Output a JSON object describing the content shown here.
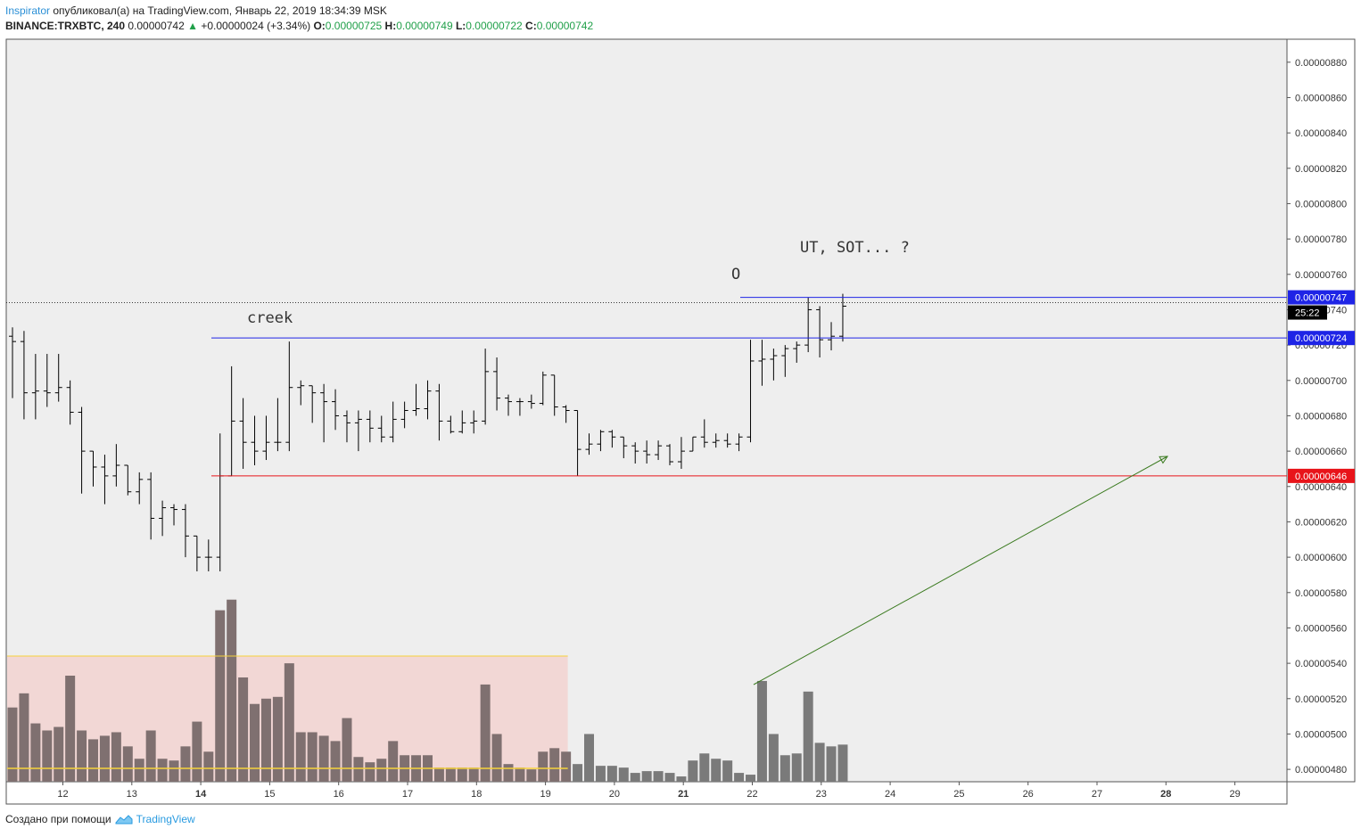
{
  "header": {
    "author": "Inspirator",
    "published_text": "опубликовал(а) на TradingView.com, Январь 22, 2019 18:34:39 MSK",
    "symbol": "BINANCE:TRXBTC, 240",
    "last": "0.00000742",
    "change_arrow": "▲",
    "change": "+0.00000024 (+3.34%)",
    "o_label": "O:",
    "o_value": "0.00000725",
    "h_label": "H:",
    "h_value": "0.00000749",
    "l_label": "L:",
    "l_value": "0.00000722",
    "c_label": "C:",
    "c_value": "0.00000742"
  },
  "footer": {
    "text": "Создано при помощи",
    "brand": "TradingView",
    "logo_icon": "tradingview-logo-icon"
  },
  "chart_data": {
    "type": "bar",
    "subtype": "ohlc",
    "interval": "240",
    "y_range": [
      4.73e-06,
      8.93e-06
    ],
    "y_ticks": [
      "0.00000880",
      "0.00000860",
      "0.00000840",
      "0.00000820",
      "0.00000800",
      "0.00000780",
      "0.00000760",
      "0.00000740",
      "0.00000720",
      "0.00000700",
      "0.00000680",
      "0.00000660",
      "0.00000640",
      "0.00000620",
      "0.00000600",
      "0.00000580",
      "0.00000560",
      "0.00000540",
      "0.00000520",
      "0.00000500",
      "0.00000480"
    ],
    "x_ticks": [
      {
        "label": "12",
        "day": 12,
        "bold": false
      },
      {
        "label": "13",
        "day": 13,
        "bold": false
      },
      {
        "label": "14",
        "day": 14,
        "bold": true
      },
      {
        "label": "15",
        "day": 15,
        "bold": false
      },
      {
        "label": "16",
        "day": 16,
        "bold": false
      },
      {
        "label": "17",
        "day": 17,
        "bold": false
      },
      {
        "label": "18",
        "day": 18,
        "bold": false
      },
      {
        "label": "19",
        "day": 19,
        "bold": false
      },
      {
        "label": "20",
        "day": 20,
        "bold": false
      },
      {
        "label": "21",
        "day": 21,
        "bold": true
      },
      {
        "label": "22",
        "day": 22,
        "bold": false
      },
      {
        "label": "23",
        "day": 23,
        "bold": false
      },
      {
        "label": "24",
        "day": 24,
        "bold": false
      },
      {
        "label": "25",
        "day": 25,
        "bold": false
      },
      {
        "label": "26",
        "day": 26,
        "bold": false
      },
      {
        "label": "27",
        "day": 27,
        "bold": false
      },
      {
        "label": "28",
        "day": 28,
        "bold": true
      },
      {
        "label": "29",
        "day": 29,
        "bold": false
      }
    ],
    "price_labels": [
      {
        "value": "0.00000747",
        "color": "#1e24e6"
      },
      {
        "value": "0.00000724",
        "color": "#1e24e6"
      },
      {
        "value": "0.00000646",
        "color": "#e8141a"
      }
    ],
    "countdown": "25:22",
    "last_price": 7.42e-06,
    "annotations": [
      "creek",
      "O",
      "UT, SOT... ?"
    ],
    "candles": [
      [
        7.25e-06,
        7.3e-06,
        6.9e-06,
        7.22e-06
      ],
      [
        7.22e-06,
        7.28e-06,
        6.78e-06,
        6.93e-06
      ],
      [
        6.93e-06,
        7.15e-06,
        6.78e-06,
        6.94e-06
      ],
      [
        6.94e-06,
        7.15e-06,
        6.85e-06,
        6.93e-06
      ],
      [
        6.93e-06,
        7.15e-06,
        6.88e-06,
        6.96e-06
      ],
      [
        6.96e-06,
        7e-06,
        6.75e-06,
        6.82e-06
      ],
      [
        6.82e-06,
        6.85e-06,
        6.36e-06,
        6.6e-06
      ],
      [
        6.6e-06,
        6.6e-06,
        6.4e-06,
        6.51e-06
      ],
      [
        6.51e-06,
        6.58e-06,
        6.3e-06,
        6.46e-06
      ],
      [
        6.46e-06,
        6.64e-06,
        6.4e-06,
        6.52e-06
      ],
      [
        6.52e-06,
        6.52e-06,
        6.35e-06,
        6.37e-06
      ],
      [
        6.37e-06,
        6.48e-06,
        6.3e-06,
        6.44e-06
      ],
      [
        6.44e-06,
        6.48e-06,
        6.1e-06,
        6.22e-06
      ],
      [
        6.22e-06,
        6.32e-06,
        6.12e-06,
        6.28e-06
      ],
      [
        6.28e-06,
        6.3e-06,
        6.18e-06,
        6.27e-06
      ],
      [
        6.27e-06,
        6.3e-06,
        6e-06,
        6.12e-06
      ],
      [
        6.12e-06,
        6.12e-06,
        5.92e-06,
        6e-06
      ],
      [
        6e-06,
        6.1e-06,
        5.92e-06,
        6e-06
      ],
      [
        6e-06,
        6.7e-06,
        5.92e-06,
        6.46e-06
      ],
      [
        6.46e-06,
        7.08e-06,
        6.46e-06,
        6.77e-06
      ],
      [
        6.77e-06,
        6.9e-06,
        6.5e-06,
        6.65e-06
      ],
      [
        6.65e-06,
        6.8e-06,
        6.52e-06,
        6.6e-06
      ],
      [
        6.6e-06,
        6.8e-06,
        6.55e-06,
        6.65e-06
      ],
      [
        6.65e-06,
        6.9e-06,
        6.6e-06,
        6.65e-06
      ],
      [
        6.65e-06,
        7.22e-06,
        6.6e-06,
        6.96e-06
      ],
      [
        6.96e-06,
        7e-06,
        6.86e-06,
        6.97e-06
      ],
      [
        6.97e-06,
        6.97e-06,
        6.76e-06,
        6.93e-06
      ],
      [
        6.93e-06,
        6.98e-06,
        6.65e-06,
        6.88e-06
      ],
      [
        6.88e-06,
        6.95e-06,
        6.72e-06,
        6.8e-06
      ],
      [
        6.8e-06,
        6.83e-06,
        6.65e-06,
        6.76e-06
      ],
      [
        6.76e-06,
        6.83e-06,
        6.6e-06,
        6.78e-06
      ],
      [
        6.78e-06,
        6.83e-06,
        6.65e-06,
        6.73e-06
      ],
      [
        6.73e-06,
        6.8e-06,
        6.65e-06,
        6.68e-06
      ],
      [
        6.68e-06,
        6.88e-06,
        6.65e-06,
        6.78e-06
      ],
      [
        6.78e-06,
        6.88e-06,
        6.73e-06,
        6.83e-06
      ],
      [
        6.83e-06,
        6.98e-06,
        6.8e-06,
        6.84e-06
      ],
      [
        6.84e-06,
        7e-06,
        6.78e-06,
        6.94e-06
      ],
      [
        6.94e-06,
        6.98e-06,
        6.66e-06,
        6.77e-06
      ],
      [
        6.77e-06,
        6.8e-06,
        6.7e-06,
        6.71e-06
      ],
      [
        6.71e-06,
        6.83e-06,
        6.7e-06,
        6.76e-06
      ],
      [
        6.76e-06,
        6.83e-06,
        6.7e-06,
        6.77e-06
      ],
      [
        6.77e-06,
        7.18e-06,
        6.75e-06,
        7.05e-06
      ],
      [
        7.05e-06,
        7.13e-06,
        6.83e-06,
        6.9e-06
      ],
      [
        6.9e-06,
        6.92e-06,
        6.8e-06,
        6.88e-06
      ],
      [
        6.88e-06,
        6.9e-06,
        6.8e-06,
        6.88e-06
      ],
      [
        6.88e-06,
        6.92e-06,
        6.84e-06,
        6.87e-06
      ],
      [
        6.87e-06,
        7.05e-06,
        6.86e-06,
        7.03e-06
      ],
      [
        7.03e-06,
        7.03e-06,
        6.8e-06,
        6.85e-06
      ],
      [
        6.85e-06,
        6.86e-06,
        6.76e-06,
        6.83e-06
      ],
      [
        6.83e-06,
        6.83e-06,
        6.46e-06,
        6.61e-06
      ],
      [
        6.61e-06,
        6.7e-06,
        6.58e-06,
        6.64e-06
      ],
      [
        6.64e-06,
        6.72e-06,
        6.6e-06,
        6.71e-06
      ],
      [
        6.71e-06,
        6.72e-06,
        6.62e-06,
        6.68e-06
      ],
      [
        6.68e-06,
        6.68e-06,
        6.56e-06,
        6.63e-06
      ],
      [
        6.63e-06,
        6.65e-06,
        6.53e-06,
        6.6e-06
      ],
      [
        6.6e-06,
        6.66e-06,
        6.53e-06,
        6.58e-06
      ],
      [
        6.58e-06,
        6.66e-06,
        6.55e-06,
        6.63e-06
      ],
      [
        6.63e-06,
        6.64e-06,
        6.52e-06,
        6.54e-06
      ],
      [
        6.54e-06,
        6.68e-06,
        6.5e-06,
        6.6e-06
      ],
      [
        6.6e-06,
        6.68e-06,
        6.6e-06,
        6.68e-06
      ],
      [
        6.68e-06,
        6.78e-06,
        6.62e-06,
        6.65e-06
      ],
      [
        6.65e-06,
        6.7e-06,
        6.62e-06,
        6.66e-06
      ],
      [
        6.66e-06,
        6.7e-06,
        6.62e-06,
        6.64e-06
      ],
      [
        6.64e-06,
        6.7e-06,
        6.6e-06,
        6.68e-06
      ],
      [
        6.68e-06,
        7.23e-06,
        6.65e-06,
        7.11e-06
      ],
      [
        7.11e-06,
        7.23e-06,
        6.97e-06,
        7.12e-06
      ],
      [
        7.12e-06,
        7.18e-06,
        7e-06,
        7.14e-06
      ],
      [
        7.14e-06,
        7.2e-06,
        7.02e-06,
        7.18e-06
      ],
      [
        7.18e-06,
        7.22e-06,
        7.1e-06,
        7.2e-06
      ],
      [
        7.2e-06,
        7.47e-06,
        7.16e-06,
        7.4e-06
      ],
      [
        7.4e-06,
        7.42e-06,
        7.13e-06,
        7.23e-06
      ],
      [
        7.23e-06,
        7.33e-06,
        7.17e-06,
        7.25e-06
      ],
      [
        7.25e-06,
        7.49e-06,
        7.22e-06,
        7.42e-06
      ]
    ],
    "volume": [
      5.15e-06,
      5.23e-06,
      5.06e-06,
      5.02e-06,
      5.04e-06,
      5.33e-06,
      5.02e-06,
      4.97e-06,
      4.99e-06,
      5.01e-06,
      4.93e-06,
      4.86e-06,
      5.02e-06,
      4.86e-06,
      4.85e-06,
      4.93e-06,
      5.07e-06,
      4.9e-06,
      5.7e-06,
      5.76e-06,
      5.32e-06,
      5.17e-06,
      5.2e-06,
      5.21e-06,
      5.4e-06,
      5.01e-06,
      5.01e-06,
      4.99e-06,
      4.96e-06,
      5.09e-06,
      4.87e-06,
      4.84e-06,
      4.86e-06,
      4.96e-06,
      4.88e-06,
      4.88e-06,
      4.88e-06,
      4.81e-06,
      4.81e-06,
      4.81e-06,
      4.81e-06,
      5.28e-06,
      5e-06,
      4.83e-06,
      4.81e-06,
      4.8e-06,
      4.9e-06,
      4.92e-06,
      4.9e-06,
      4.83e-06,
      5e-06,
      4.82e-06,
      4.82e-06,
      4.81e-06,
      4.78e-06,
      4.79e-06,
      4.79e-06,
      4.78e-06,
      4.76e-06,
      4.85e-06,
      4.89e-06,
      4.86e-06,
      4.85e-06,
      4.78e-06,
      4.77e-06,
      5.3e-06,
      5e-06,
      4.88e-06,
      4.89e-06,
      5.24e-06,
      4.95e-06,
      4.93e-06,
      4.94e-06
    ],
    "volume_highlight_count": 48
  }
}
